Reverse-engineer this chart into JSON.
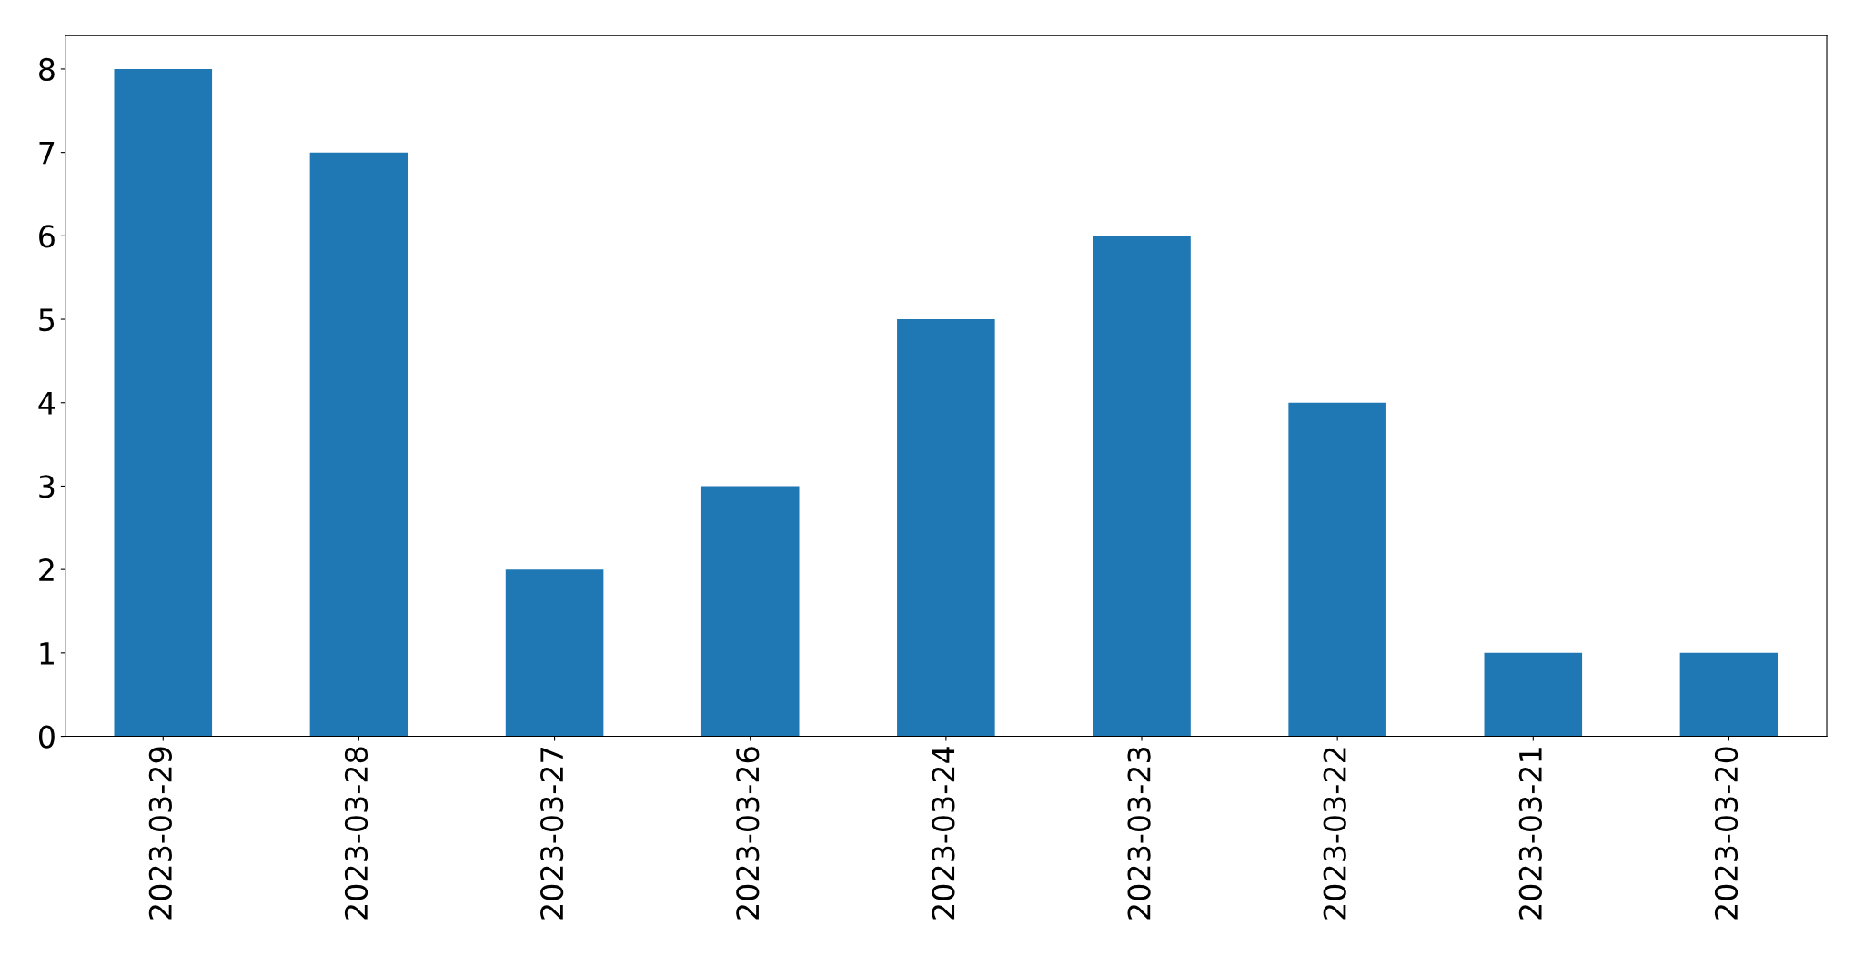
{
  "chart_data": {
    "type": "bar",
    "categories": [
      "2023-03-29",
      "2023-03-28",
      "2023-03-27",
      "2023-03-26",
      "2023-03-24",
      "2023-03-23",
      "2023-03-22",
      "2023-03-21",
      "2023-03-20"
    ],
    "values": [
      8,
      7,
      2,
      3,
      5,
      6,
      4,
      1,
      1
    ],
    "color": "#1f77b4",
    "ylim": [
      0,
      8.4
    ],
    "yticks": [
      0,
      1,
      2,
      3,
      4,
      5,
      6,
      7,
      8
    ],
    "grid": false,
    "legend": false
  }
}
